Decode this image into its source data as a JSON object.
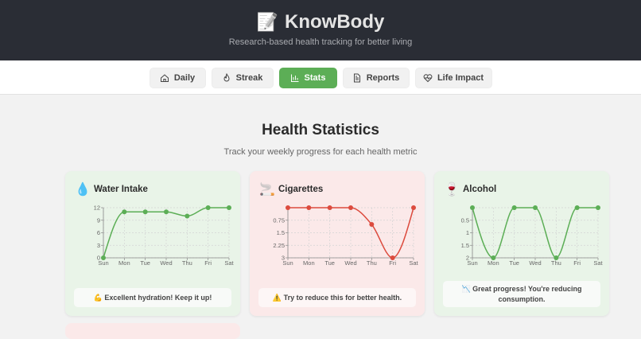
{
  "app": {
    "title": "KnowBody",
    "tagline": "Research-based health tracking for better living",
    "logo_icon": "notepad-pencil-icon"
  },
  "nav": {
    "tabs": [
      {
        "label": "Daily",
        "icon": "home-icon",
        "active": false
      },
      {
        "label": "Streak",
        "icon": "flame-icon",
        "active": false
      },
      {
        "label": "Stats",
        "icon": "bar-chart-icon",
        "active": true
      },
      {
        "label": "Reports",
        "icon": "document-icon",
        "active": false
      },
      {
        "label": "Life Impact",
        "icon": "heart-pulse-icon",
        "active": false
      }
    ]
  },
  "page": {
    "title": "Health Statistics",
    "subtitle": "Track your weekly progress for each health metric"
  },
  "colors": {
    "good": "#5cae56",
    "bad": "#dc4b3e",
    "active_tab": "#5cae56",
    "header": "#2a2d35"
  },
  "chart_data": [
    {
      "type": "line",
      "title": "Water Intake",
      "icon": "💧",
      "categories": [
        "Sun",
        "Mon",
        "Tue",
        "Wed",
        "Thu",
        "Fri",
        "Sat"
      ],
      "values": [
        0,
        11,
        11,
        11,
        10,
        12,
        12
      ],
      "ylim": [
        0,
        12
      ],
      "yticks": [
        "0",
        "3",
        "6",
        "9",
        "12"
      ],
      "reversed": false,
      "color": "#5cae56",
      "grid": true,
      "message": "💪 Excellent hydration! Keep it up!"
    },
    {
      "type": "line",
      "title": "Cigarettes",
      "icon": "🚬",
      "categories": [
        "Sun",
        "Mon",
        "Tue",
        "Wed",
        "Thu",
        "Fri",
        "Sat"
      ],
      "values": [
        0,
        0,
        0,
        0,
        1,
        3,
        0
      ],
      "ylim": [
        0,
        3
      ],
      "yticks": [
        "",
        "0.75",
        "1.5",
        "2.25",
        "3"
      ],
      "reversed": true,
      "color": "#dc4b3e",
      "grid": true,
      "message": "⚠️ Try to reduce this for better health."
    },
    {
      "type": "line",
      "title": "Alcohol",
      "icon": "🍷",
      "categories": [
        "Sun",
        "Mon",
        "Tue",
        "Wed",
        "Thu",
        "Fri",
        "Sat"
      ],
      "values": [
        0,
        2,
        0,
        0,
        2,
        0,
        0
      ],
      "ylim": [
        0,
        2
      ],
      "yticks": [
        "",
        "0.5",
        "1",
        "1.5",
        "2"
      ],
      "reversed": true,
      "color": "#5cae56",
      "grid": true,
      "message": "📉 Great progress! You're reducing consumption."
    }
  ]
}
